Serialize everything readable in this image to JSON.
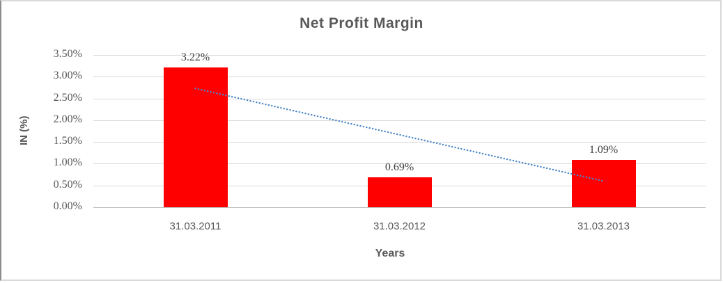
{
  "chart_data": {
    "type": "bar",
    "title": "Net Profit Margin",
    "xlabel": "Years",
    "ylabel": "IN (%)",
    "categories": [
      "31.03.2011",
      "31.03.2012",
      "31.03.2013"
    ],
    "values": [
      3.22,
      0.69,
      1.09
    ],
    "data_labels": [
      "3.22%",
      "0.69%",
      "1.09%"
    ],
    "ylim": [
      0,
      3.5
    ],
    "ytick_step": 0.5,
    "ytick_labels": [
      "3.50%",
      "3.00%",
      "2.50%",
      "2.00%",
      "1.50%",
      "1.00%",
      "0.50%",
      "0.00%"
    ],
    "grid": true,
    "legend": "none",
    "bar_color": "#FF0000",
    "trendline": {
      "type": "linear",
      "style": "dotted",
      "color": "#4A86C8",
      "start_value": 2.73,
      "end_value": 0.6
    },
    "colors": {
      "text": "#595959",
      "data_label_text": "#404040",
      "gridline": "#D9D9D9",
      "axis_line": "#BFBFBF",
      "frame_border": "#D9D9D9"
    }
  }
}
